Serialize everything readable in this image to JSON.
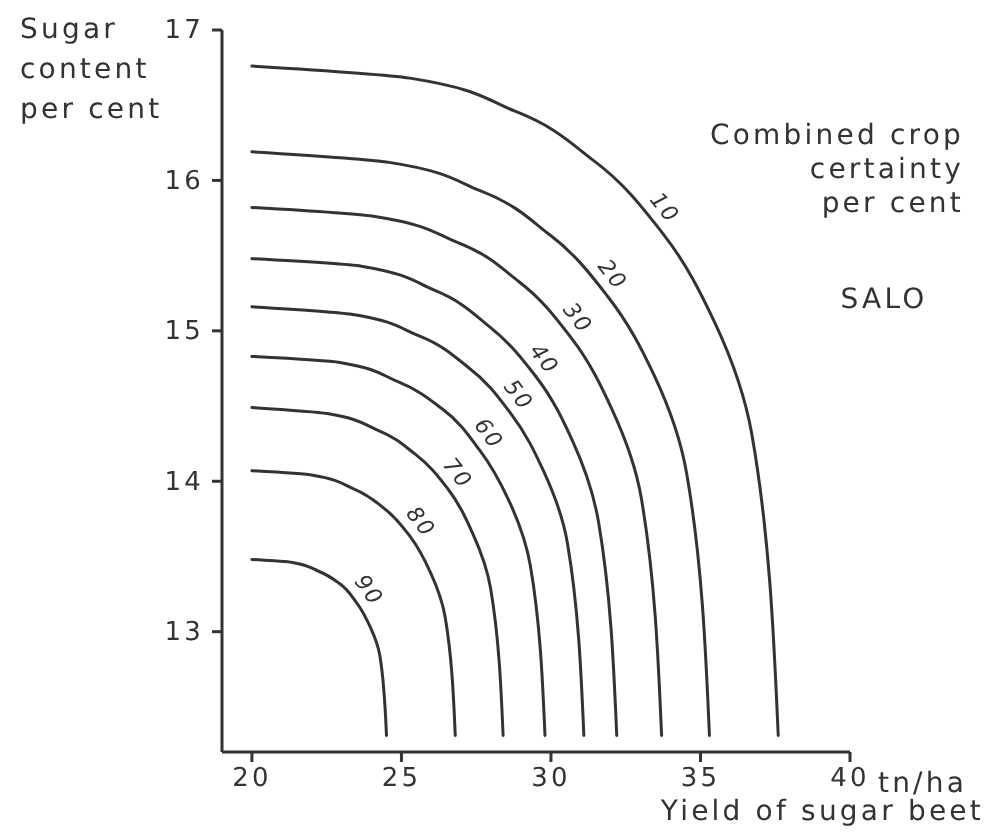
{
  "chart_data": {
    "type": "line",
    "xlabel": "Yield of sugar beet",
    "ylabel": "Sugar\ncontent\nper cent",
    "legend_title": "Combined crop\ncertainty\nper cent",
    "annotations": [
      "SALO",
      "tn/ha"
    ],
    "xlim": [
      19,
      40
    ],
    "ylim": [
      12.2,
      17
    ],
    "xticks": [
      20,
      25,
      30,
      35,
      40
    ],
    "yticks": [
      13,
      14,
      15,
      16,
      17
    ],
    "grid": false,
    "marker": "none",
    "line_style": "solid",
    "series": [
      {
        "name": "10",
        "color": "#333333",
        "x": [
          20,
          25.28,
          28.8,
          31.44,
          33.73,
          35.49,
          36.72,
          37.6
        ],
        "values": [
          16.76,
          16.68,
          16.46,
          16.13,
          15.65,
          15.05,
          14.31,
          12.31
        ]
      },
      {
        "name": "20",
        "color": "#333333",
        "x": [
          20,
          24.59,
          27.65,
          29.95,
          31.93,
          33.46,
          34.54,
          35.3
        ],
        "values": [
          16.19,
          16.12,
          15.93,
          15.64,
          15.22,
          14.7,
          14.05,
          12.31
        ]
      },
      {
        "name": "30",
        "color": "#333333",
        "x": [
          20,
          24.11,
          26.85,
          28.91,
          30.69,
          32.06,
          33.02,
          33.7
        ],
        "values": [
          15.82,
          15.76,
          15.59,
          15.33,
          14.95,
          14.47,
          13.89,
          12.31
        ]
      },
      {
        "name": "40",
        "color": "#333333",
        "x": [
          20,
          23.66,
          26.1,
          27.93,
          29.52,
          30.74,
          31.59,
          32.2
        ],
        "values": [
          15.48,
          15.43,
          15.27,
          15.03,
          14.69,
          14.26,
          13.73,
          12.31
        ]
      },
      {
        "name": "50",
        "color": "#333333",
        "x": [
          20,
          23.33,
          25.55,
          27.22,
          28.66,
          29.77,
          30.55,
          31.1
        ],
        "values": [
          15.16,
          15.11,
          14.97,
          14.76,
          14.45,
          14.06,
          13.59,
          12.31
        ]
      },
      {
        "name": "60",
        "color": "#333333",
        "x": [
          20,
          22.94,
          24.9,
          26.37,
          27.64,
          28.62,
          29.31,
          29.8
        ],
        "values": [
          14.83,
          14.79,
          14.66,
          14.48,
          14.2,
          13.86,
          13.44,
          12.31
        ]
      },
      {
        "name": "70",
        "color": "#333333",
        "x": [
          20,
          22.52,
          24.2,
          25.46,
          26.55,
          27.39,
          27.98,
          28.4
        ],
        "values": [
          14.49,
          14.45,
          14.34,
          14.18,
          13.95,
          13.65,
          13.29,
          12.31
        ]
      },
      {
        "name": "80",
        "color": "#333333",
        "x": [
          20,
          22.04,
          23.4,
          24.42,
          25.3,
          25.98,
          26.46,
          26.8
        ],
        "values": [
          14.07,
          14.04,
          13.95,
          13.82,
          13.63,
          13.39,
          13.1,
          12.31
        ]
      },
      {
        "name": "90",
        "color": "#333333",
        "x": [
          20,
          21.35,
          22.25,
          22.93,
          23.51,
          23.96,
          24.28,
          24.5
        ],
        "values": [
          13.48,
          13.46,
          13.4,
          13.32,
          13.19,
          13.03,
          12.84,
          12.31
        ]
      }
    ]
  }
}
